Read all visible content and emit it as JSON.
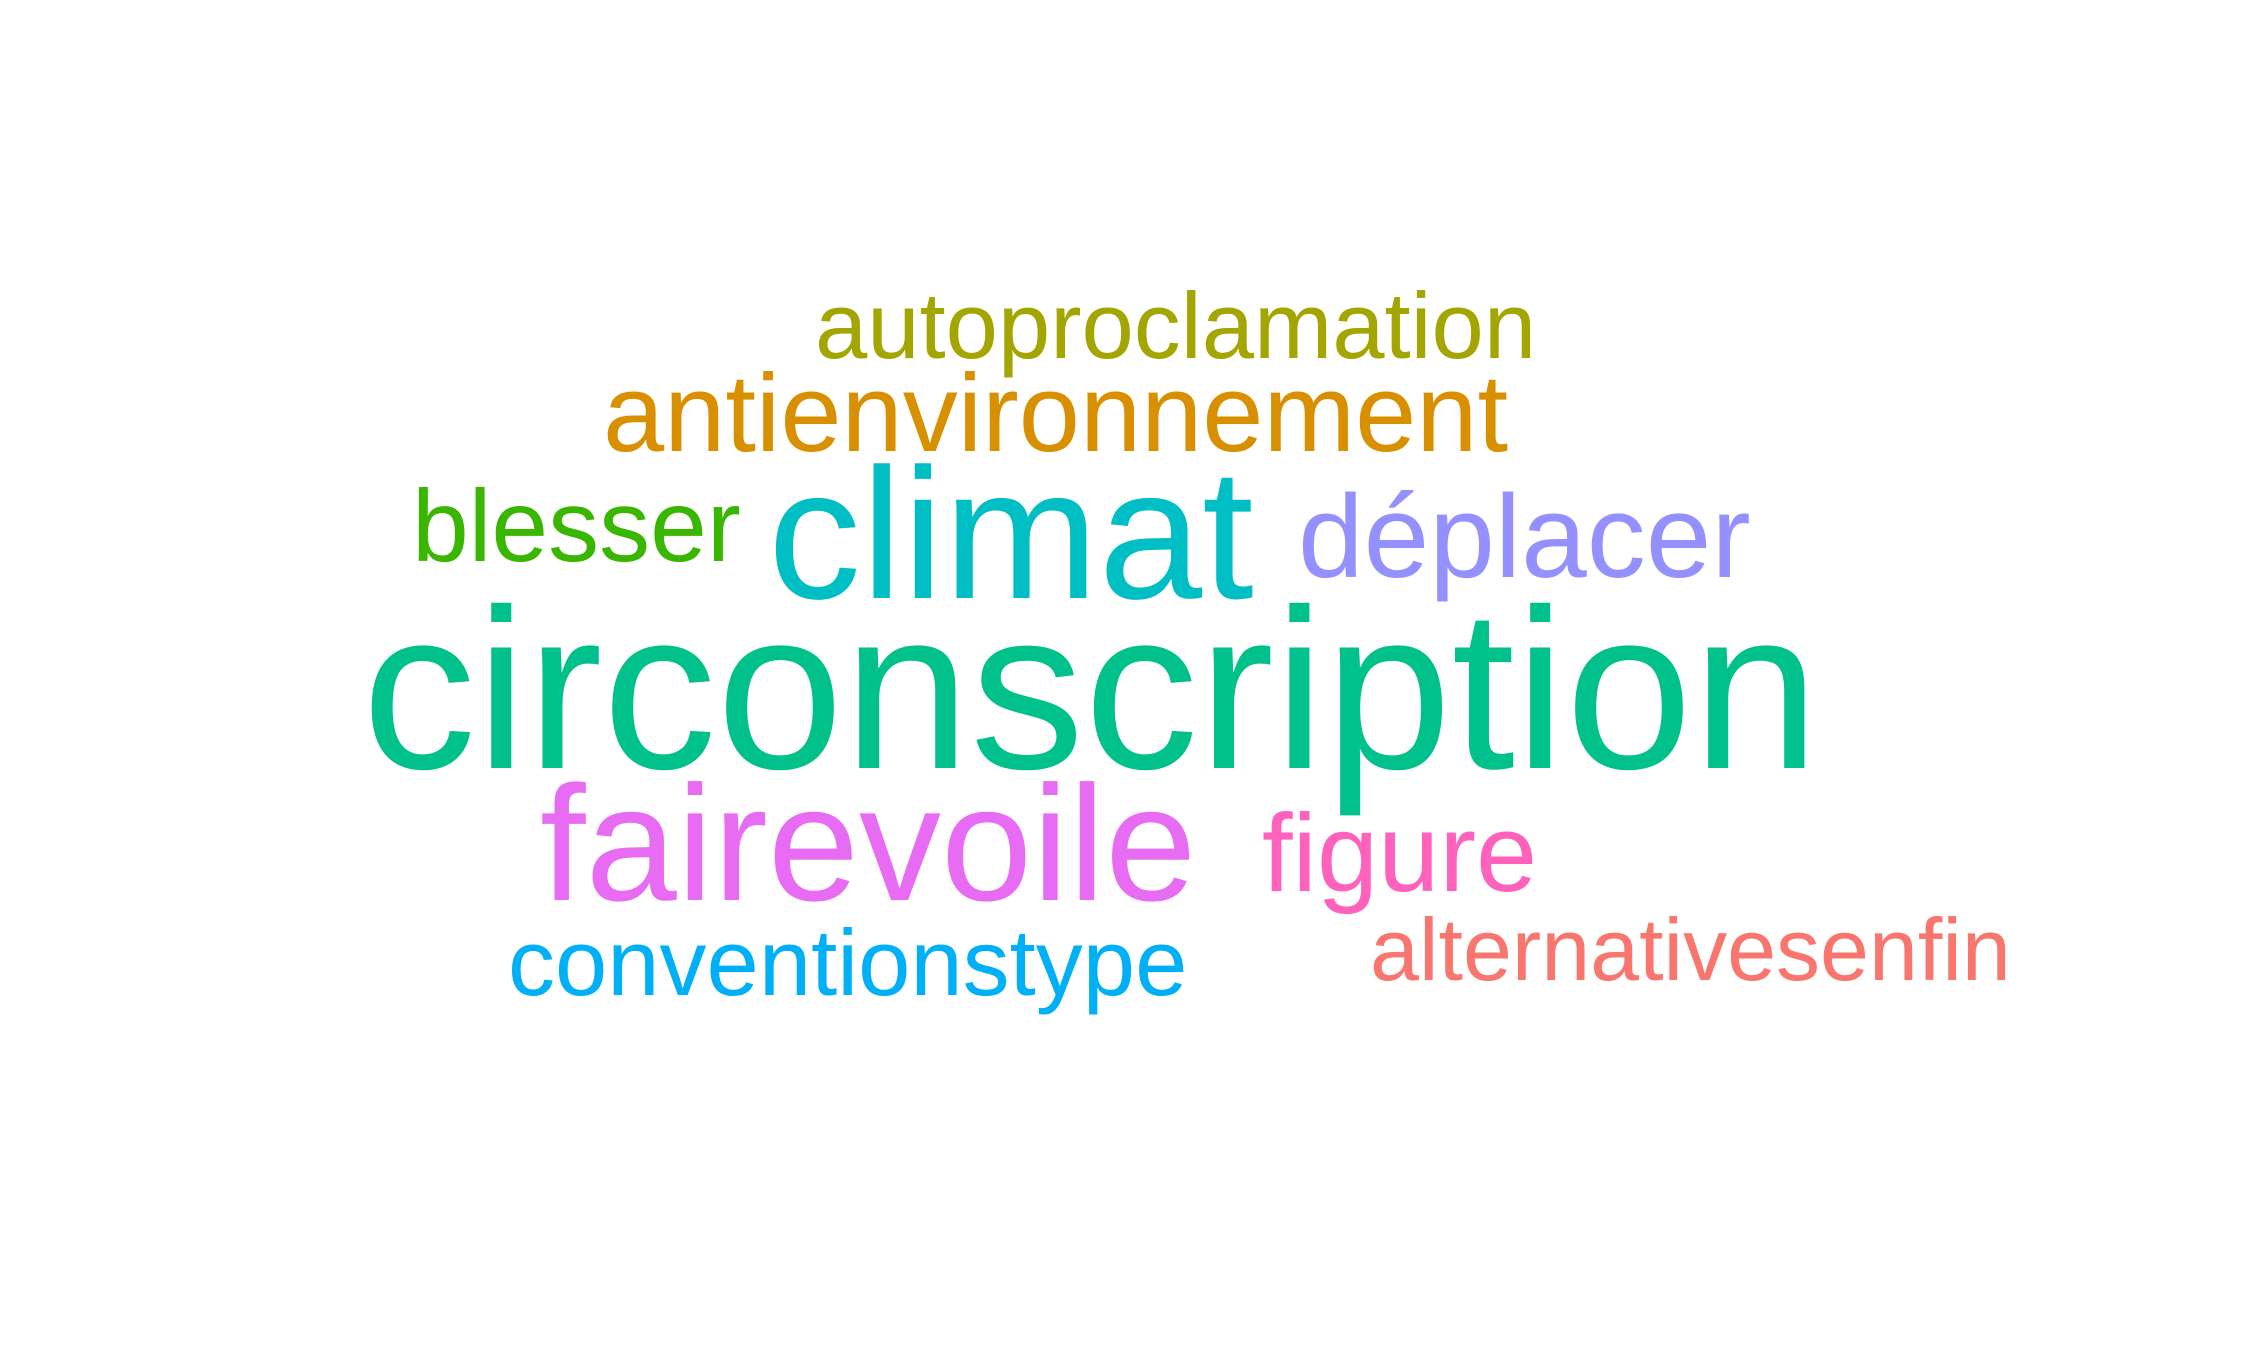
{
  "word_cloud": {
    "words": [
      {
        "text": "autoproclamation",
        "color": "#a3a500"
      },
      {
        "text": "antienvironnement",
        "color": "#d89000"
      },
      {
        "text": "blesser",
        "color": "#39b600"
      },
      {
        "text": "climat",
        "color": "#00bfc4"
      },
      {
        "text": "déplacer",
        "color": "#9590ff"
      },
      {
        "text": "circonscription",
        "color": "#00c08b"
      },
      {
        "text": "fairevoile",
        "color": "#e76bf3"
      },
      {
        "text": "figure",
        "color": "#ff62bc"
      },
      {
        "text": "conventionstype",
        "color": "#00b0f6"
      },
      {
        "text": "alternativesenfin",
        "color": "#f8766d"
      }
    ]
  }
}
